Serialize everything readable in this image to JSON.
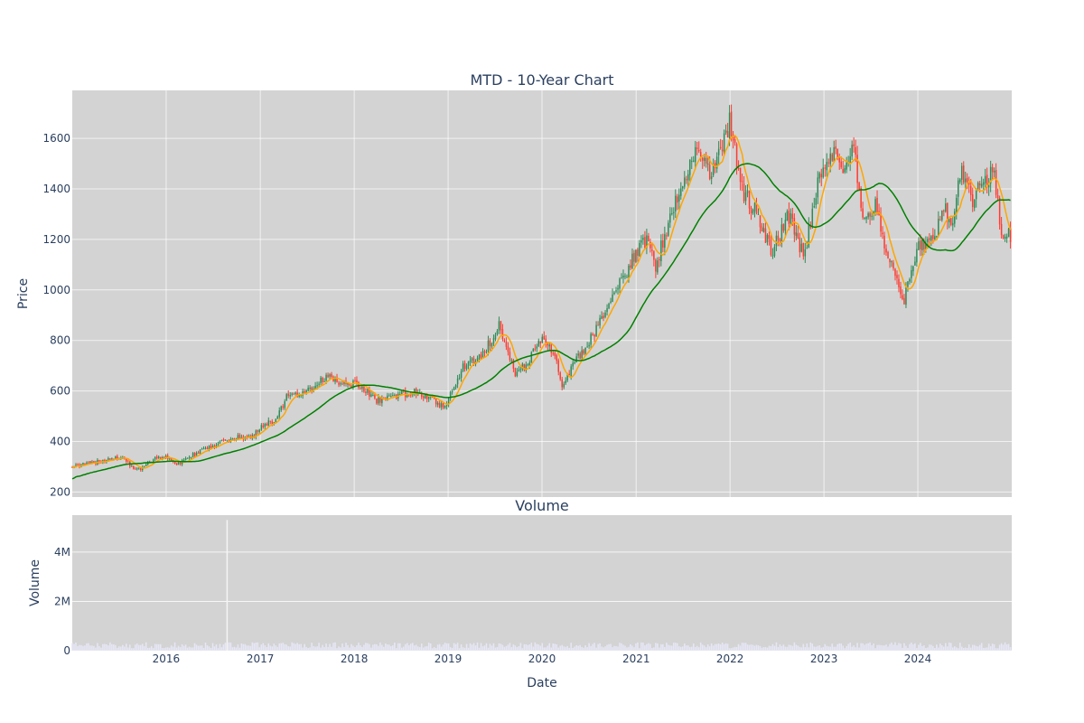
{
  "chart_data": [
    {
      "type": "candlestick",
      "title": "MTD - 10-Year Chart",
      "ylabel": "Price",
      "xlabel": "",
      "xlim": [
        "2015-01-01",
        "2024-12-31"
      ],
      "ylim": [
        180,
        1790
      ],
      "y_ticks": [
        200,
        400,
        600,
        800,
        1000,
        1200,
        1400,
        1600
      ],
      "x_ticks": [
        "2016",
        "2017",
        "2018",
        "2019",
        "2020",
        "2021",
        "2022",
        "2023",
        "2024"
      ],
      "grid": true,
      "plot_background": "#d3d3d3",
      "increasing_color": "#2e8b57",
      "decreasing_color": "#ff3b30",
      "ma_short_color": "#ffa500",
      "ma_long_color": "#008000",
      "close_keypoints": [
        [
          "2015-01-01",
          300
        ],
        [
          "2015-03-15",
          315
        ],
        [
          "2015-06-01",
          330
        ],
        [
          "2015-07-15",
          340
        ],
        [
          "2015-08-25",
          290
        ],
        [
          "2015-10-01",
          295
        ],
        [
          "2015-11-15",
          335
        ],
        [
          "2016-01-01",
          340
        ],
        [
          "2016-02-10",
          305
        ],
        [
          "2016-04-01",
          340
        ],
        [
          "2016-06-01",
          370
        ],
        [
          "2016-08-01",
          400
        ],
        [
          "2016-10-01",
          415
        ],
        [
          "2016-12-01",
          420
        ],
        [
          "2017-01-15",
          470
        ],
        [
          "2017-03-01",
          480
        ],
        [
          "2017-04-15",
          580
        ],
        [
          "2017-06-15",
          585
        ],
        [
          "2017-08-01",
          620
        ],
        [
          "2017-09-15",
          660
        ],
        [
          "2017-11-01",
          630
        ],
        [
          "2018-01-01",
          630
        ],
        [
          "2018-02-15",
          600
        ],
        [
          "2018-04-01",
          560
        ],
        [
          "2018-06-15",
          580
        ],
        [
          "2018-09-01",
          600
        ],
        [
          "2018-11-01",
          570
        ],
        [
          "2018-12-15",
          530
        ],
        [
          "2019-01-15",
          600
        ],
        [
          "2019-03-01",
          700
        ],
        [
          "2019-05-01",
          730
        ],
        [
          "2019-06-15",
          800
        ],
        [
          "2019-07-20",
          860
        ],
        [
          "2019-09-15",
          670
        ],
        [
          "2019-11-01",
          700
        ],
        [
          "2020-01-01",
          810
        ],
        [
          "2020-02-15",
          760
        ],
        [
          "2020-03-20",
          620
        ],
        [
          "2020-05-01",
          700
        ],
        [
          "2020-07-15",
          820
        ],
        [
          "2020-09-15",
          950
        ],
        [
          "2020-11-15",
          1050
        ],
        [
          "2021-01-01",
          1150
        ],
        [
          "2021-02-15",
          1200
        ],
        [
          "2021-03-15",
          1080
        ],
        [
          "2021-05-01",
          1250
        ],
        [
          "2021-07-01",
          1420
        ],
        [
          "2021-09-01",
          1560
        ],
        [
          "2021-10-15",
          1450
        ],
        [
          "2021-12-15",
          1600
        ],
        [
          "2022-01-01",
          1680
        ],
        [
          "2022-02-15",
          1400
        ],
        [
          "2022-04-15",
          1300
        ],
        [
          "2022-06-15",
          1150
        ],
        [
          "2022-08-15",
          1300
        ],
        [
          "2022-10-15",
          1130
        ],
        [
          "2022-12-15",
          1450
        ],
        [
          "2023-02-01",
          1550
        ],
        [
          "2023-03-20",
          1470
        ],
        [
          "2023-04-25",
          1560
        ],
        [
          "2023-06-01",
          1310
        ],
        [
          "2023-07-20",
          1330
        ],
        [
          "2023-09-01",
          1150
        ],
        [
          "2023-10-20",
          1000
        ],
        [
          "2023-11-10",
          960
        ],
        [
          "2024-01-01",
          1180
        ],
        [
          "2024-03-01",
          1200
        ],
        [
          "2024-04-15",
          1320
        ],
        [
          "2024-05-15",
          1230
        ],
        [
          "2024-06-15",
          1480
        ],
        [
          "2024-08-01",
          1350
        ],
        [
          "2024-09-15",
          1440
        ],
        [
          "2024-10-25",
          1460
        ],
        [
          "2024-11-20",
          1200
        ],
        [
          "2024-12-31",
          1220
        ]
      ]
    },
    {
      "type": "bar",
      "title": "Volume",
      "ylabel": "Volume",
      "xlabel": "Date",
      "xlim": [
        "2015-01-01",
        "2024-12-31"
      ],
      "ylim": [
        0,
        5500000
      ],
      "y_ticks": [
        0,
        2000000,
        4000000
      ],
      "y_tick_labels": [
        "0",
        "2M",
        "4M"
      ],
      "x_ticks": [
        "2016",
        "2017",
        "2018",
        "2019",
        "2020",
        "2021",
        "2022",
        "2023",
        "2024"
      ],
      "grid": true,
      "plot_background": "#d3d3d3",
      "bar_color": "#e6e6f5",
      "spike_color": "#f5f5f5",
      "spike_date": "2016-08-25",
      "spike_value": 5300000,
      "typical_volume": 200000
    }
  ]
}
